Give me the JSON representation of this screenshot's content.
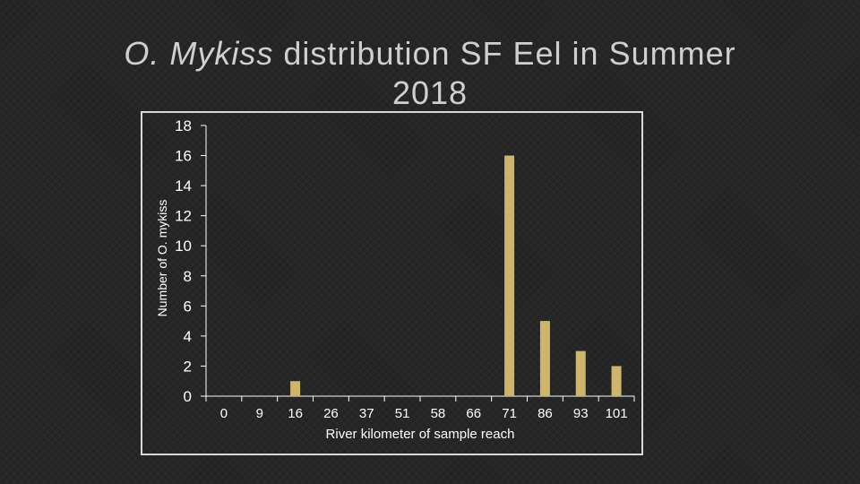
{
  "title": {
    "italic_part": "O. Mykiss",
    "rest_line1": " distribution SF Eel in Summer",
    "line2": "2018"
  },
  "colors": {
    "bar": "#cdb56a",
    "axis": "#ffffff",
    "frame": "#d9d9d9",
    "background": "#262626"
  },
  "chart_data": {
    "type": "bar",
    "categories": [
      "0",
      "9",
      "16",
      "26",
      "37",
      "51",
      "58",
      "66",
      "71",
      "86",
      "93",
      "101"
    ],
    "values": [
      0,
      0,
      1,
      0,
      0,
      0,
      0,
      0,
      16,
      5,
      3,
      2
    ],
    "xlabel": "River kilometer of sample reach",
    "ylabel": "Number of O. mykiss",
    "ylim": [
      0,
      18
    ],
    "yticks": [
      0,
      2,
      4,
      6,
      8,
      10,
      12,
      14,
      16,
      18
    ],
    "grid": false,
    "legend": "none"
  }
}
